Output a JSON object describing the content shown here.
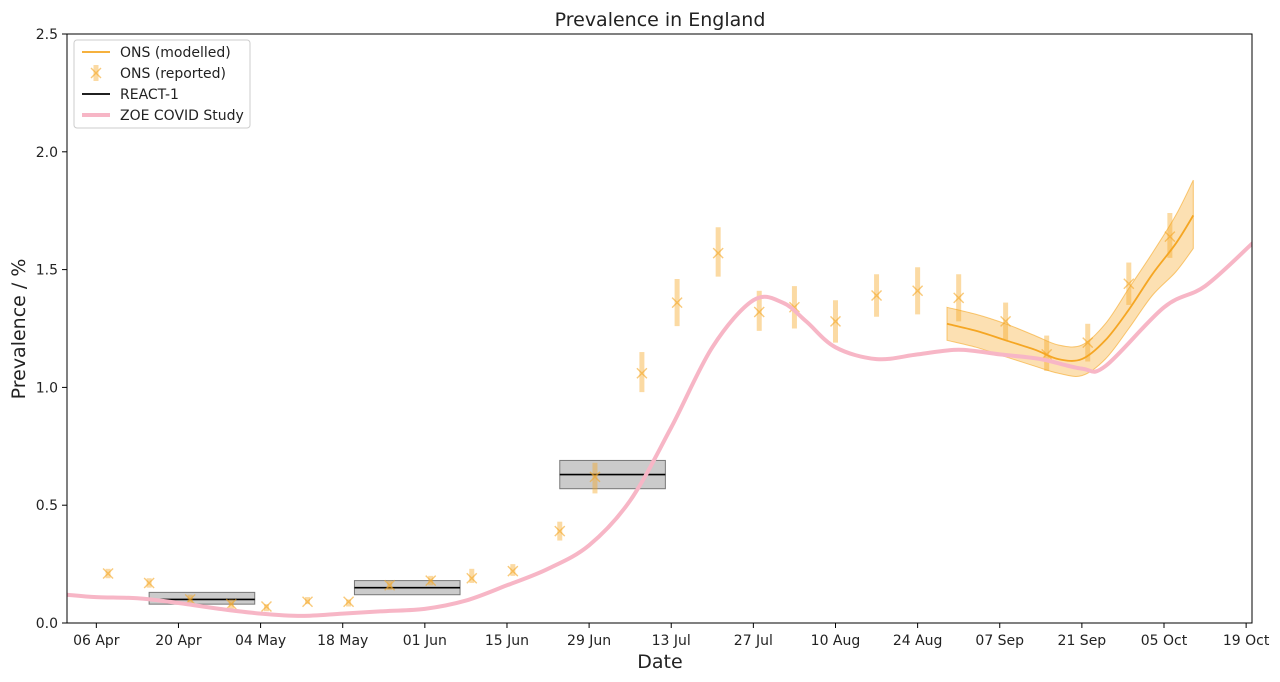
{
  "chart_data": {
    "type": "line",
    "title": "Prevalence in England",
    "xlabel": "Date",
    "ylabel": "Prevalence / %",
    "x_start": "2021-04-01",
    "x_end": "2021-10-20",
    "ylim": [
      0,
      2.5
    ],
    "y_ticks": [
      0.0,
      0.5,
      1.0,
      1.5,
      2.0,
      2.5
    ],
    "y_tick_labels": [
      "0.0",
      "0.5",
      "1.0",
      "1.5",
      "2.0",
      "2.5"
    ],
    "x_ticks": [
      {
        "date": "2021-04-06",
        "label": "06 Apr"
      },
      {
        "date": "2021-04-20",
        "label": "20 Apr"
      },
      {
        "date": "2021-05-04",
        "label": "04 May"
      },
      {
        "date": "2021-05-18",
        "label": "18 May"
      },
      {
        "date": "2021-06-01",
        "label": "01 Jun"
      },
      {
        "date": "2021-06-15",
        "label": "15 Jun"
      },
      {
        "date": "2021-06-29",
        "label": "29 Jun"
      },
      {
        "date": "2021-07-13",
        "label": "13 Jul"
      },
      {
        "date": "2021-07-27",
        "label": "27 Jul"
      },
      {
        "date": "2021-08-10",
        "label": "10 Aug"
      },
      {
        "date": "2021-08-24",
        "label": "24 Aug"
      },
      {
        "date": "2021-09-07",
        "label": "07 Sep"
      },
      {
        "date": "2021-09-21",
        "label": "21 Sep"
      },
      {
        "date": "2021-10-05",
        "label": "05 Oct"
      },
      {
        "date": "2021-10-19",
        "label": "19 Oct"
      }
    ],
    "grid": false,
    "legend": {
      "position": "top-left",
      "entries": [
        {
          "label": "ONS (modelled)",
          "kind": "line",
          "color": "#f5a623"
        },
        {
          "label": "ONS (reported)",
          "kind": "marker",
          "color": "#f5a623"
        },
        {
          "label": "REACT-1",
          "kind": "line",
          "color": "#000000"
        },
        {
          "label": "ZOE COVID Study",
          "kind": "thickline",
          "color": "#f7b6c6"
        }
      ]
    },
    "series": {
      "zoe": {
        "name": "ZOE COVID Study",
        "color": "#f7b6c6",
        "points": [
          [
            "2021-04-01",
            0.12
          ],
          [
            "2021-04-06",
            0.11
          ],
          [
            "2021-04-13",
            0.105
          ],
          [
            "2021-04-20",
            0.085
          ],
          [
            "2021-04-27",
            0.06
          ],
          [
            "2021-05-04",
            0.04
          ],
          [
            "2021-05-11",
            0.03
          ],
          [
            "2021-05-18",
            0.04
          ],
          [
            "2021-05-25",
            0.05
          ],
          [
            "2021-06-01",
            0.06
          ],
          [
            "2021-06-08",
            0.095
          ],
          [
            "2021-06-15",
            0.16
          ],
          [
            "2021-06-22",
            0.23
          ],
          [
            "2021-06-29",
            0.33
          ],
          [
            "2021-07-06",
            0.52
          ],
          [
            "2021-07-13",
            0.83
          ],
          [
            "2021-07-20",
            1.17
          ],
          [
            "2021-07-27",
            1.37
          ],
          [
            "2021-08-01",
            1.36
          ],
          [
            "2021-08-05",
            1.28
          ],
          [
            "2021-08-10",
            1.17
          ],
          [
            "2021-08-17",
            1.12
          ],
          [
            "2021-08-24",
            1.14
          ],
          [
            "2021-08-31",
            1.16
          ],
          [
            "2021-09-07",
            1.14
          ],
          [
            "2021-09-14",
            1.12
          ],
          [
            "2021-09-21",
            1.08
          ],
          [
            "2021-09-25",
            1.09
          ],
          [
            "2021-10-05",
            1.34
          ],
          [
            "2021-10-12",
            1.43
          ],
          [
            "2021-10-20",
            1.61
          ]
        ]
      },
      "ons_modelled": {
        "name": "ONS (modelled)",
        "color": "#f5a623",
        "points": [
          [
            "2021-08-29",
            1.27,
            1.2,
            1.34
          ],
          [
            "2021-09-03",
            1.24,
            1.17,
            1.31
          ],
          [
            "2021-09-08",
            1.2,
            1.13,
            1.27
          ],
          [
            "2021-09-13",
            1.16,
            1.09,
            1.22
          ],
          [
            "2021-09-17",
            1.12,
            1.06,
            1.18
          ],
          [
            "2021-09-21",
            1.12,
            1.05,
            1.18
          ],
          [
            "2021-09-25",
            1.2,
            1.12,
            1.27
          ],
          [
            "2021-09-29",
            1.33,
            1.25,
            1.42
          ],
          [
            "2021-10-03",
            1.48,
            1.39,
            1.57
          ],
          [
            "2021-10-07",
            1.61,
            1.49,
            1.73
          ],
          [
            "2021-10-10",
            1.73,
            1.59,
            1.88
          ]
        ]
      },
      "ons_reported": {
        "name": "ONS (reported)",
        "color": "#f5a623",
        "points": [
          [
            "2021-04-08",
            0.21,
            0.19,
            0.23
          ],
          [
            "2021-04-15",
            0.17,
            0.15,
            0.19
          ],
          [
            "2021-04-22",
            0.1,
            0.08,
            0.12
          ],
          [
            "2021-04-29",
            0.08,
            0.06,
            0.1
          ],
          [
            "2021-05-05",
            0.07,
            0.05,
            0.08
          ],
          [
            "2021-05-12",
            0.09,
            0.08,
            0.11
          ],
          [
            "2021-05-19",
            0.09,
            0.07,
            0.1
          ],
          [
            "2021-05-26",
            0.16,
            0.14,
            0.18
          ],
          [
            "2021-06-02",
            0.18,
            0.16,
            0.2
          ],
          [
            "2021-06-09",
            0.19,
            0.17,
            0.23
          ],
          [
            "2021-06-16",
            0.22,
            0.2,
            0.25
          ],
          [
            "2021-06-24",
            0.39,
            0.35,
            0.43
          ],
          [
            "2021-06-30",
            0.62,
            0.55,
            0.68
          ],
          [
            "2021-07-08",
            1.06,
            0.98,
            1.15
          ],
          [
            "2021-07-14",
            1.36,
            1.26,
            1.46
          ],
          [
            "2021-07-21",
            1.57,
            1.47,
            1.68
          ],
          [
            "2021-07-28",
            1.32,
            1.24,
            1.41
          ],
          [
            "2021-08-03",
            1.34,
            1.25,
            1.43
          ],
          [
            "2021-08-10",
            1.28,
            1.19,
            1.37
          ],
          [
            "2021-08-17",
            1.39,
            1.3,
            1.48
          ],
          [
            "2021-08-24",
            1.41,
            1.31,
            1.51
          ],
          [
            "2021-08-31",
            1.38,
            1.28,
            1.48
          ],
          [
            "2021-09-08",
            1.28,
            1.2,
            1.36
          ],
          [
            "2021-09-15",
            1.14,
            1.07,
            1.22
          ],
          [
            "2021-09-22",
            1.19,
            1.11,
            1.27
          ],
          [
            "2021-09-29",
            1.44,
            1.35,
            1.53
          ],
          [
            "2021-10-06",
            1.64,
            1.55,
            1.74
          ]
        ]
      },
      "react1": {
        "name": "REACT-1",
        "color": "#000000",
        "rounds": [
          {
            "start": "2021-04-15",
            "end": "2021-05-03",
            "value": 0.1,
            "low": 0.08,
            "high": 0.13
          },
          {
            "start": "2021-05-20",
            "end": "2021-06-07",
            "value": 0.15,
            "low": 0.12,
            "high": 0.18
          },
          {
            "start": "2021-06-24",
            "end": "2021-07-12",
            "value": 0.63,
            "low": 0.57,
            "high": 0.69
          }
        ]
      }
    }
  }
}
